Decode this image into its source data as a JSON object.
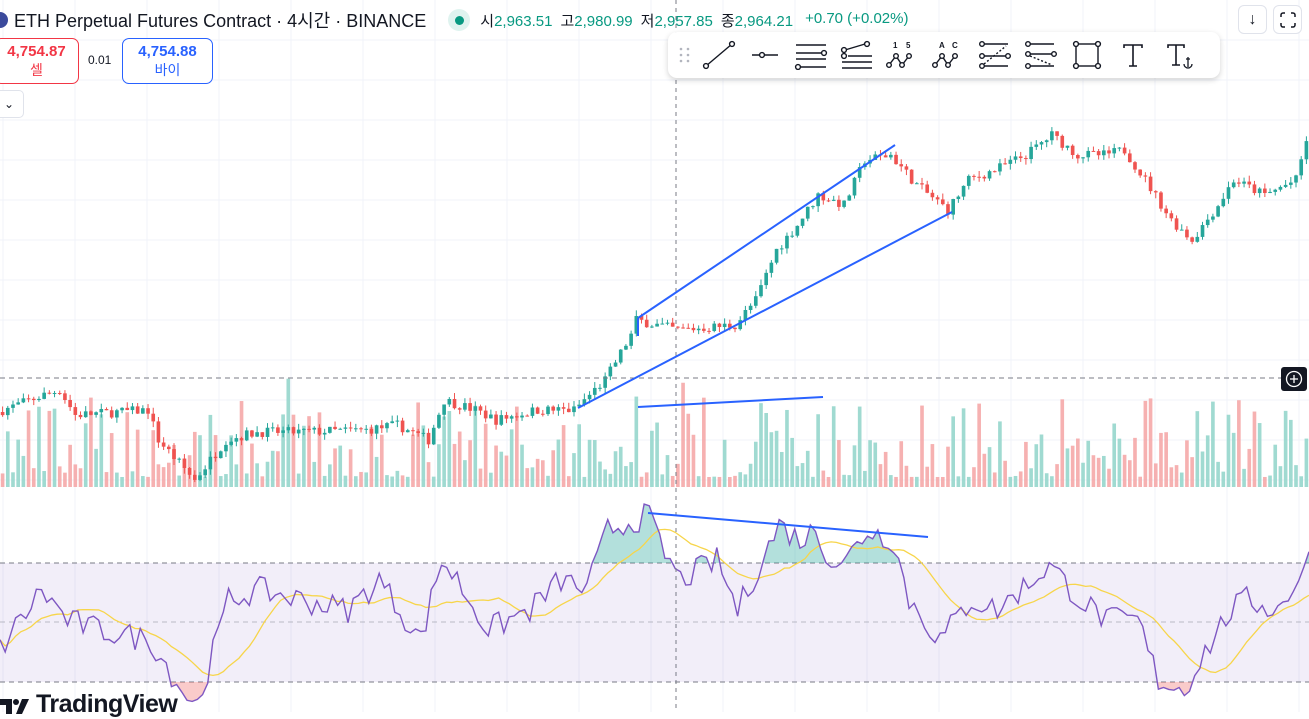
{
  "header": {
    "title": "ETH Perpetual Futures Contract · 4시간 · BINANCE",
    "ohlc": [
      {
        "label": "시",
        "value": "2,963.51"
      },
      {
        "label": "고",
        "value": "2,980.99"
      },
      {
        "label": "저",
        "value": "2,957.85"
      },
      {
        "label": "종",
        "value": "2,964.21"
      }
    ],
    "change": "+0.70 (+0.02%)"
  },
  "trade": {
    "sell_price": "4,754.87",
    "sell_label": "셀",
    "quantity": "0.01",
    "buy_price": "4,754.88",
    "buy_label": "바이"
  },
  "toolbar": {
    "tools": [
      "trend-line",
      "horizontal-ray",
      "parallel-channel",
      "regression-trend",
      "xabcd-pattern-15",
      "abcd-pattern",
      "fib-retracement",
      "fib-extension",
      "rectangle",
      "text",
      "anchored-text"
    ],
    "labels": {
      "pattern_a": "1",
      "pattern_b": "5",
      "abc_a": "A",
      "abc_c": "C"
    }
  },
  "branding": {
    "logo": "TradingView"
  },
  "colors": {
    "up": "#26a69a",
    "down": "#ef5350",
    "rsi": "#7e57c2",
    "rsi_ma": "#f7d54a",
    "drawing": "#2962ff",
    "text_value": "#089981"
  },
  "chart_data": {
    "type": "candlestick",
    "bars": 252,
    "price_anchors": [
      [
        0,
        78
      ],
      [
        9,
        95
      ],
      [
        12,
        100
      ],
      [
        15,
        75
      ],
      [
        29,
        80
      ],
      [
        31,
        50
      ],
      [
        38,
        10
      ],
      [
        44,
        50
      ],
      [
        50,
        58
      ],
      [
        58,
        58
      ],
      [
        71,
        60
      ],
      [
        77,
        65
      ],
      [
        83,
        50
      ],
      [
        86,
        90
      ],
      [
        92,
        80
      ],
      [
        96,
        70
      ],
      [
        104,
        80
      ],
      [
        111,
        80
      ],
      [
        117,
        110
      ],
      [
        122,
        155
      ],
      [
        123,
        170
      ],
      [
        131,
        160
      ],
      [
        142,
        165
      ],
      [
        146,
        190
      ],
      [
        150,
        240
      ],
      [
        154,
        265
      ],
      [
        158,
        295
      ],
      [
        163,
        285
      ],
      [
        167,
        330
      ],
      [
        172,
        335
      ],
      [
        177,
        305
      ],
      [
        183,
        280
      ],
      [
        187,
        310
      ],
      [
        192,
        320
      ],
      [
        198,
        335
      ],
      [
        203,
        355
      ],
      [
        208,
        335
      ],
      [
        213,
        335
      ],
      [
        217,
        340
      ],
      [
        221,
        310
      ],
      [
        226,
        270
      ],
      [
        230,
        250
      ],
      [
        235,
        285
      ],
      [
        238,
        310
      ],
      [
        244,
        295
      ],
      [
        250,
        310
      ],
      [
        252,
        350
      ]
    ],
    "rsi": {
      "bands": [
        70,
        50,
        30
      ],
      "anchors": [
        [
          0,
          40.8
        ],
        [
          8,
          60.9
        ],
        [
          13,
          50.8
        ],
        [
          19,
          47.5
        ],
        [
          29,
          44.1
        ],
        [
          35,
          27.3
        ],
        [
          38,
          22.3
        ],
        [
          44,
          57.6
        ],
        [
          50,
          60.9
        ],
        [
          58,
          57.6
        ],
        [
          67,
          54.2
        ],
        [
          73,
          64.3
        ],
        [
          81,
          44.1
        ],
        [
          85,
          71
        ],
        [
          88,
          64.3
        ],
        [
          94,
          47.5
        ],
        [
          102,
          54.2
        ],
        [
          108,
          64.3
        ],
        [
          113,
          60.9
        ],
        [
          117,
          81.1
        ],
        [
          125,
          86.1
        ],
        [
          127,
          76
        ],
        [
          131,
          64.3
        ],
        [
          138,
          71
        ],
        [
          142,
          54.2
        ],
        [
          150,
          82.8
        ],
        [
          154,
          77.7
        ],
        [
          157,
          81.1
        ],
        [
          160,
          71
        ],
        [
          163,
          71
        ],
        [
          167,
          81.1
        ],
        [
          172,
          77.7
        ],
        [
          175,
          57.6
        ],
        [
          181,
          44.1
        ],
        [
          187,
          57.6
        ],
        [
          192,
          54.2
        ],
        [
          202,
          69.3
        ],
        [
          208,
          57.6
        ],
        [
          213,
          50.8
        ],
        [
          219,
          50.8
        ],
        [
          223,
          30.7
        ],
        [
          228,
          27.3
        ],
        [
          231,
          37.4
        ],
        [
          237,
          54.2
        ],
        [
          240,
          57.6
        ],
        [
          246,
          54.2
        ],
        [
          252,
          71
        ]
      ],
      "ma_length": 14
    }
  }
}
